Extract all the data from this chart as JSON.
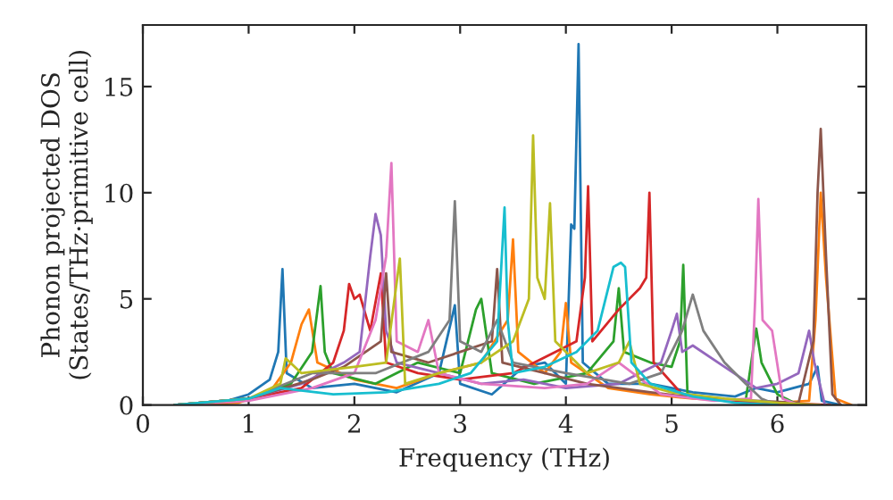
{
  "chart_data": {
    "type": "line",
    "xlabel": "Frequency (THz)",
    "ylabel": "Phonon projected DOS\n(States/THz·primitive cell)",
    "xlim": [
      0,
      6.84
    ],
    "ylim": [
      0,
      17.9
    ],
    "xticks": [
      0,
      1,
      2,
      3,
      4,
      5,
      6
    ],
    "yticks": [
      0,
      5,
      10,
      15
    ],
    "grid": false,
    "legend": false,
    "marker": "none",
    "line_style": "solid",
    "series": [
      {
        "color": "#1f77b4",
        "x": [
          0.3,
          0.8,
          1.0,
          1.2,
          1.28,
          1.32,
          1.36,
          1.6,
          2.0,
          2.4,
          2.8,
          2.95,
          3.0,
          3.3,
          3.6,
          3.8,
          4.0,
          4.05,
          4.08,
          4.12,
          4.16,
          4.4,
          4.8,
          5.2,
          5.6,
          5.8,
          6.0,
          6.3,
          6.38,
          6.42,
          6.6
        ],
        "values": [
          0,
          0.2,
          0.5,
          1.2,
          2.5,
          6.4,
          1.5,
          0.8,
          1.0,
          0.6,
          1.5,
          4.7,
          1.0,
          0.5,
          1.8,
          2.0,
          1.0,
          8.5,
          8.3,
          17,
          2,
          1,
          1,
          0.6,
          0.4,
          0.8,
          0.6,
          1.0,
          1.8,
          0.2,
          0
        ]
      },
      {
        "color": "#ff7f0e",
        "x": [
          0.3,
          0.9,
          1.2,
          1.4,
          1.5,
          1.57,
          1.65,
          2.0,
          2.4,
          2.8,
          3.2,
          3.45,
          3.5,
          3.55,
          3.8,
          3.95,
          4.0,
          4.05,
          4.4,
          4.8,
          5.2,
          5.6,
          6.0,
          6.3,
          6.36,
          6.41,
          6.46,
          6.55,
          6.7
        ],
        "values": [
          0,
          0.1,
          0.6,
          2.0,
          3.8,
          4.5,
          2.0,
          1.2,
          0.8,
          1.5,
          2.0,
          4.0,
          7.8,
          2.5,
          1.5,
          2.5,
          4.8,
          2.0,
          0.8,
          0.5,
          0.3,
          0.2,
          0.1,
          0.2,
          4.0,
          10,
          6.0,
          0.3,
          0
        ]
      },
      {
        "color": "#2ca02c",
        "x": [
          0.3,
          1.0,
          1.4,
          1.6,
          1.68,
          1.72,
          1.8,
          2.2,
          2.6,
          3.0,
          3.15,
          3.2,
          3.3,
          3.7,
          4.2,
          4.45,
          4.5,
          4.55,
          4.8,
          5.0,
          5.08,
          5.11,
          5.15,
          5.4,
          5.7,
          5.8,
          5.85,
          6.0,
          6.2
        ],
        "values": [
          0,
          0.3,
          1.0,
          2.5,
          5.6,
          2.5,
          1.5,
          1.0,
          2.0,
          1.5,
          4.5,
          5.0,
          1.5,
          1.0,
          1.5,
          3.0,
          5.5,
          2.5,
          2.0,
          1.8,
          3.0,
          6.6,
          0.5,
          0.3,
          0.2,
          3.6,
          2.0,
          0.5,
          0
        ]
      },
      {
        "color": "#d62728",
        "x": [
          0.3,
          1.0,
          1.5,
          1.8,
          1.9,
          1.95,
          2.0,
          2.05,
          2.15,
          2.25,
          2.3,
          2.6,
          3.0,
          3.5,
          3.9,
          4.1,
          4.18,
          4.21,
          4.25,
          4.5,
          4.7,
          4.76,
          4.79,
          4.83,
          5.1,
          5.5,
          6.0,
          6.5
        ],
        "values": [
          0,
          0.3,
          0.8,
          2.0,
          3.5,
          5.7,
          5.0,
          5.2,
          3.5,
          6.2,
          2.0,
          1.5,
          1.2,
          1.5,
          2.5,
          3.0,
          6.0,
          10.3,
          3.0,
          4.5,
          5.5,
          6.0,
          10,
          2.0,
          0.5,
          0.2,
          0.1,
          0
        ]
      },
      {
        "color": "#9467bd",
        "x": [
          0.3,
          1.0,
          1.5,
          1.9,
          2.05,
          2.15,
          2.2,
          2.25,
          2.3,
          2.4,
          2.8,
          3.2,
          3.6,
          4.0,
          4.5,
          4.9,
          5.0,
          5.05,
          5.1,
          5.2,
          5.5,
          5.8,
          6.0,
          6.2,
          6.3,
          6.35,
          6.45
        ],
        "values": [
          0,
          0.3,
          1.0,
          2.0,
          2.5,
          7.0,
          9.0,
          8.0,
          3.5,
          2.0,
          1.5,
          1.0,
          1.2,
          0.8,
          1.0,
          2.0,
          3.5,
          4.3,
          2.5,
          2.8,
          1.8,
          0.8,
          1.0,
          1.5,
          3.5,
          2.0,
          0
        ]
      },
      {
        "color": "#8c564b",
        "x": [
          0.3,
          1.0,
          1.6,
          1.9,
          2.25,
          2.3,
          2.35,
          2.7,
          3.0,
          3.3,
          3.35,
          3.4,
          3.8,
          4.2,
          4.8,
          5.3,
          5.8,
          6.2,
          6.34,
          6.38,
          6.41,
          6.46,
          6.52,
          6.6
        ],
        "values": [
          0,
          0.3,
          1.2,
          1.8,
          3.0,
          6.2,
          2.5,
          2.0,
          2.5,
          3.0,
          6.4,
          2.0,
          1.5,
          1.0,
          0.6,
          0.3,
          0.2,
          0.1,
          3.0,
          10,
          13,
          7,
          0.5,
          0
        ]
      },
      {
        "color": "#e377c2",
        "x": [
          0.3,
          1.0,
          1.6,
          2.0,
          2.2,
          2.3,
          2.35,
          2.4,
          2.6,
          2.7,
          2.8,
          3.2,
          3.8,
          4.2,
          4.5,
          4.9,
          5.4,
          5.75,
          5.79,
          5.82,
          5.86,
          5.95,
          6.05,
          6.2
        ],
        "values": [
          0,
          0.2,
          0.8,
          1.5,
          4.0,
          7.0,
          11.4,
          3.0,
          2.5,
          4.0,
          1.5,
          1.0,
          0.8,
          1.0,
          2.0,
          0.5,
          0.2,
          0.3,
          5.0,
          9.7,
          4.0,
          3.5,
          0.3,
          0
        ]
      },
      {
        "color": "#7f7f7f",
        "x": [
          0.3,
          1.0,
          1.6,
          2.2,
          2.7,
          2.9,
          2.95,
          3.0,
          3.2,
          3.35,
          3.5,
          4.0,
          4.6,
          4.9,
          5.1,
          5.2,
          5.3,
          5.5,
          5.7,
          5.85,
          6.0
        ],
        "values": [
          0,
          0.3,
          1.5,
          1.5,
          2.5,
          4.0,
          9.6,
          3.0,
          2.5,
          4.0,
          2.0,
          1.5,
          1.0,
          1.5,
          3.5,
          5.2,
          3.5,
          2.0,
          1.0,
          0.3,
          0
        ]
      },
      {
        "color": "#bcbd22",
        "x": [
          0.3,
          1.0,
          1.3,
          1.35,
          1.5,
          2.0,
          2.3,
          2.43,
          2.48,
          2.8,
          3.2,
          3.5,
          3.65,
          3.69,
          3.73,
          3.8,
          3.85,
          3.9,
          4.2,
          4.5,
          4.6,
          4.7,
          5.0,
          5.5,
          6.0,
          6.4
        ],
        "values": [
          0,
          0.3,
          1.0,
          2.2,
          1.5,
          1.8,
          2.0,
          6.9,
          1.0,
          1.5,
          2.0,
          3.0,
          5.0,
          12.7,
          6.0,
          5.0,
          9.5,
          3.0,
          1.5,
          2.0,
          3.0,
          1.0,
          0.6,
          0.3,
          0.1,
          0
        ]
      },
      {
        "color": "#17becf",
        "x": [
          0.3,
          1.0,
          1.3,
          1.8,
          2.3,
          2.8,
          3.1,
          3.35,
          3.42,
          3.45,
          3.5,
          3.8,
          4.1,
          4.3,
          4.45,
          4.52,
          4.56,
          4.62,
          4.8,
          5.2,
          5.6,
          6.0
        ],
        "values": [
          0,
          0.3,
          0.8,
          0.5,
          0.6,
          1.0,
          1.5,
          3.0,
          9.3,
          4.0,
          1.5,
          1.8,
          2.5,
          3.5,
          6.5,
          6.7,
          6.5,
          2.0,
          1.0,
          0.4,
          0.1,
          0
        ]
      }
    ]
  }
}
